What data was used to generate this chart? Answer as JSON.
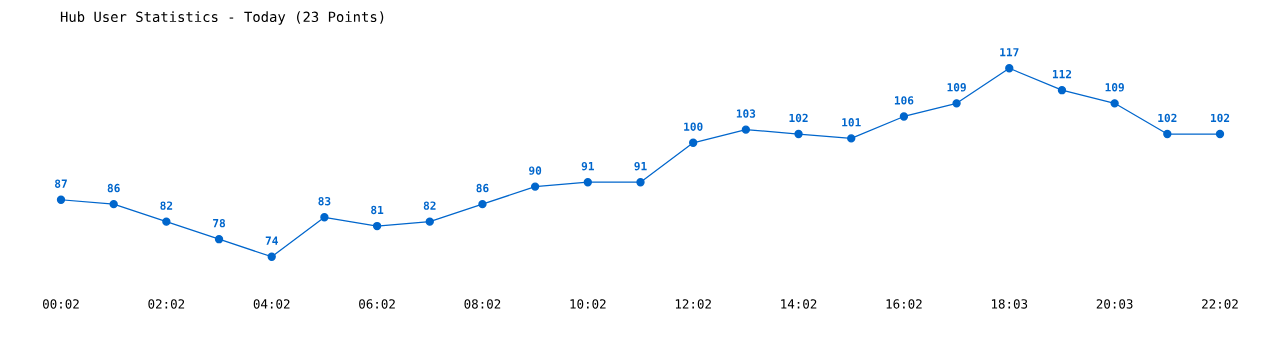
{
  "chart_data": {
    "type": "line",
    "title": "Hub User Statistics - Today (23 Points)",
    "categories": [
      "00:02",
      null,
      "02:02",
      null,
      "04:02",
      null,
      "06:02",
      null,
      "08:02",
      null,
      "10:02",
      null,
      "12:02",
      null,
      "14:02",
      null,
      "16:02",
      null,
      "18:03",
      null,
      "20:03",
      null,
      "22:02"
    ],
    "series": [
      {
        "color": "#0066cc",
        "values": [
          87,
          86,
          82,
          78,
          74,
          83,
          81,
          82,
          86,
          90,
          91,
          91,
          100,
          103,
          102,
          101,
          106,
          109,
          117,
          112,
          109,
          102,
          102
        ]
      }
    ],
    "tick_labels": "x",
    "data_labels": true,
    "marker": "circle",
    "line_style": "solid",
    "grid": false,
    "legend": false
  }
}
